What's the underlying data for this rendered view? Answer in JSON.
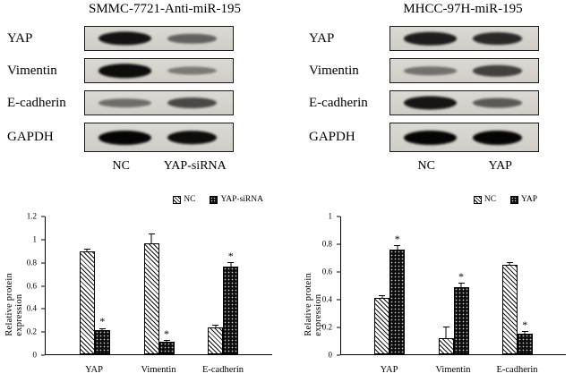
{
  "figure": {
    "background": "#ffffff",
    "accent_color": "#000000"
  },
  "blot_panels": [
    {
      "title": "SMMC-7721-Anti-miR-195",
      "rows": [
        {
          "label": "YAP",
          "bands": [
            0.92,
            0.45
          ]
        },
        {
          "label": "Vimentin",
          "bands": [
            0.95,
            0.3
          ]
        },
        {
          "label": "E-cadherin",
          "bands": [
            0.38,
            0.6
          ]
        },
        {
          "label": "GAPDH",
          "bands": [
            1.0,
            0.95
          ]
        }
      ],
      "lanes": [
        "NC",
        "YAP-siRNA"
      ]
    },
    {
      "title": "MHCC-97H-miR-195",
      "rows": [
        {
          "label": "YAP",
          "bands": [
            0.85,
            0.78
          ]
        },
        {
          "label": "Vimentin",
          "bands": [
            0.35,
            0.65
          ]
        },
        {
          "label": "E-cadherin",
          "bands": [
            0.9,
            0.5
          ]
        },
        {
          "label": "GAPDH",
          "bands": [
            1.0,
            1.0
          ]
        }
      ],
      "lanes": [
        "NC",
        "YAP"
      ]
    }
  ],
  "chart_data": [
    {
      "type": "bar",
      "title": "",
      "ylabel": "Relative protein expression",
      "xlabel": "",
      "categories": [
        "YAP",
        "Vimentin",
        "E-cadherin"
      ],
      "series": [
        {
          "name": "NC",
          "pattern": "hatch",
          "values": [
            0.9,
            0.97,
            0.23
          ],
          "errors": [
            0.02,
            0.08,
            0.03
          ],
          "sig": [
            "",
            "",
            ""
          ]
        },
        {
          "name": "YAP-siRNA",
          "pattern": "dots",
          "values": [
            0.21,
            0.11,
            0.76
          ],
          "errors": [
            0.02,
            0.015,
            0.04
          ],
          "sig": [
            "*",
            "*",
            "*"
          ]
        }
      ],
      "ylim": [
        0,
        1.2
      ],
      "yticks": [
        0,
        0.2,
        0.4,
        0.6,
        0.8,
        1,
        1.2
      ],
      "grid": false,
      "legend_position": "top-right"
    },
    {
      "type": "bar",
      "title": "",
      "ylabel": "Relative protein expression",
      "xlabel": "",
      "categories": [
        "YAP",
        "Vimentin",
        "E-cadherin"
      ],
      "series": [
        {
          "name": "NC",
          "pattern": "hatch",
          "values": [
            0.41,
            0.12,
            0.65
          ],
          "errors": [
            0.02,
            0.08,
            0.02
          ],
          "sig": [
            "",
            "",
            ""
          ]
        },
        {
          "name": "YAP",
          "pattern": "dots",
          "values": [
            0.76,
            0.49,
            0.15
          ],
          "errors": [
            0.03,
            0.03,
            0.02
          ],
          "sig": [
            "*",
            "*",
            "*"
          ]
        }
      ],
      "ylim": [
        0,
        1
      ],
      "yticks": [
        0,
        0.2,
        0.4,
        0.6,
        0.8,
        1
      ],
      "grid": false,
      "legend_position": "top-right"
    }
  ]
}
